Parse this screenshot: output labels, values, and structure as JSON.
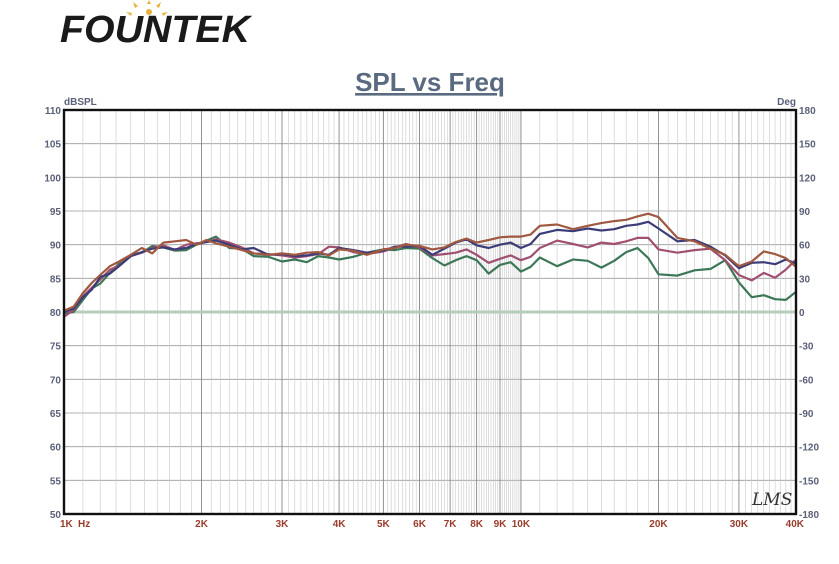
{
  "logo": {
    "text": "FOUNTEK"
  },
  "chart_data": {
    "type": "line",
    "title": "SPL vs Freq",
    "xlabel": "Hz",
    "ylabel": "dBSPL",
    "y2label": "Deg",
    "xscale": "log",
    "xlim": [
      1000,
      40000
    ],
    "ylim": [
      50,
      110
    ],
    "y2lim": [
      -180,
      180
    ],
    "grid": true,
    "x_ticks": [
      {
        "value": 1000,
        "label": "1K"
      },
      {
        "value": 2000,
        "label": "2K"
      },
      {
        "value": 3000,
        "label": "3K"
      },
      {
        "value": 4000,
        "label": "4K"
      },
      {
        "value": 5000,
        "label": "5K"
      },
      {
        "value": 6000,
        "label": "6K"
      },
      {
        "value": 7000,
        "label": "7K"
      },
      {
        "value": 8000,
        "label": "8K"
      },
      {
        "value": 9000,
        "label": "9K"
      },
      {
        "value": 10000,
        "label": "10K"
      },
      {
        "value": 20000,
        "label": "20K"
      },
      {
        "value": 30000,
        "label": "30K"
      },
      {
        "value": 40000,
        "label": "40K"
      }
    ],
    "y_ticks": [
      110,
      105,
      100,
      95,
      90,
      85,
      80,
      75,
      70,
      65,
      60,
      55,
      50
    ],
    "y2_ticks": [
      180,
      150,
      120,
      90,
      60,
      30,
      0,
      -30,
      -60,
      -90,
      -120,
      -150,
      -180
    ],
    "colors": {
      "brown": "#a05840",
      "navy": "#3c3c78",
      "mauve": "#a05070",
      "green": "#3c7858",
      "phase": "#b8ccbc",
      "axis_tick": "#9a3c2c",
      "axis_left": "#5a6078",
      "title": "#5a6a80"
    },
    "series": [
      {
        "color": "brown",
        "x": [
          1000,
          1050,
          1100,
          1150,
          1200,
          1260,
          1320,
          1400,
          1480,
          1560,
          1650,
          1750,
          1850,
          1950,
          2050,
          2150,
          2300,
          2450,
          2600,
          2800,
          3000,
          3200,
          3400,
          3600,
          3800,
          4000,
          4300,
          4600,
          5000,
          5300,
          5600,
          6000,
          6400,
          6800,
          7200,
          7600,
          8000,
          8500,
          9000,
          9500,
          10000,
          10500,
          11000,
          12000,
          13000,
          14000,
          15000,
          16000,
          17000,
          18000,
          19000,
          20000,
          22000,
          24000,
          26000,
          28000,
          30000,
          32000,
          34000,
          36000,
          38000,
          40000
        ],
        "y": [
          80.2,
          80.8,
          82.8,
          84.3,
          85.5,
          86.8,
          87.5,
          88.5,
          89.5,
          88.7,
          90.3,
          90.5,
          90.7,
          90,
          90.7,
          90.2,
          89.7,
          89.2,
          88.7,
          88.5,
          88.7,
          88.5,
          88.8,
          88.9,
          88.4,
          89.3,
          89.1,
          88.5,
          89.3,
          89.5,
          90,
          89.8,
          89.3,
          89.6,
          90.4,
          90.9,
          90.3,
          90.7,
          91.1,
          91.2,
          91.2,
          91.5,
          92.8,
          93,
          92.3,
          92.8,
          93.2,
          93.5,
          93.7,
          94.2,
          94.6,
          94.1,
          91,
          90.5,
          89.4,
          88.5,
          86.8,
          87.5,
          89,
          88.6,
          88,
          86.7
        ]
      },
      {
        "color": "navy",
        "x": [
          1000,
          1050,
          1100,
          1150,
          1200,
          1260,
          1320,
          1400,
          1480,
          1560,
          1650,
          1750,
          1850,
          1950,
          2050,
          2150,
          2300,
          2450,
          2600,
          2800,
          3000,
          3200,
          3400,
          3600,
          3800,
          4000,
          4300,
          4600,
          5000,
          5300,
          5600,
          6000,
          6400,
          6800,
          7200,
          7600,
          8000,
          8500,
          9000,
          9500,
          10000,
          10500,
          11000,
          12000,
          13000,
          14000,
          15000,
          16000,
          17000,
          18000,
          19000,
          20000,
          22000,
          24000,
          26000,
          28000,
          30000,
          32000,
          34000,
          36000,
          38000,
          40000
        ],
        "y": [
          80,
          80.5,
          82.2,
          83.3,
          85.2,
          85.7,
          86.8,
          88.3,
          88.9,
          89.4,
          89.6,
          89.3,
          89.5,
          90.1,
          90.4,
          90.6,
          90,
          89.3,
          89.5,
          88.5,
          88.6,
          88.3,
          88.4,
          88.7,
          88.5,
          89.5,
          89.2,
          88.8,
          89.1,
          89.7,
          89.7,
          89.8,
          88.5,
          89.4,
          90.3,
          90.8,
          89.9,
          89.5,
          90,
          90.3,
          89.5,
          90.1,
          91.6,
          92.2,
          92,
          92.4,
          92.1,
          92.3,
          92.8,
          93,
          93.4,
          92.4,
          90.5,
          90.7,
          89.7,
          88.4,
          86.5,
          87.3,
          87.4,
          87.1,
          87.8,
          87.2
        ]
      },
      {
        "color": "mauve",
        "x": [
          1000,
          1050,
          1100,
          1150,
          1200,
          1260,
          1320,
          1400,
          1480,
          1560,
          1650,
          1750,
          1850,
          1950,
          2050,
          2150,
          2300,
          2450,
          2600,
          2800,
          3000,
          3200,
          3400,
          3600,
          3800,
          4000,
          4300,
          4600,
          5000,
          5300,
          5600,
          6000,
          6400,
          6800,
          7200,
          7600,
          8000,
          8500,
          9000,
          9500,
          10000,
          10500,
          11000,
          12000,
          13000,
          14000,
          15000,
          16000,
          17000,
          18000,
          19000,
          20000,
          22000,
          24000,
          26000,
          28000,
          30000,
          32000,
          34000,
          36000,
          38000,
          40000
        ],
        "y": [
          79.3,
          80.3,
          82.3,
          83.6,
          84.8,
          86.3,
          86.9,
          88.3,
          88.8,
          89.5,
          89.9,
          89.2,
          90,
          90.2,
          90.4,
          90.8,
          90.3,
          89.6,
          88.7,
          88.6,
          88.4,
          88.1,
          88.3,
          88.6,
          89.7,
          89.6,
          88.9,
          88.6,
          89,
          89.6,
          90.1,
          89.6,
          88.4,
          88.6,
          88.8,
          89.3,
          88.5,
          87.3,
          87.9,
          88.4,
          87.7,
          88.2,
          89.5,
          90.6,
          90.1,
          89.6,
          90.3,
          90.1,
          90.5,
          91,
          91,
          89.3,
          88.8,
          89.2,
          89.4,
          87.7,
          85.5,
          84.7,
          85.8,
          85.1,
          86.3,
          87.8
        ]
      },
      {
        "color": "green",
        "x": [
          1000,
          1050,
          1100,
          1150,
          1200,
          1260,
          1320,
          1400,
          1480,
          1560,
          1650,
          1750,
          1850,
          1950,
          2050,
          2150,
          2300,
          2450,
          2600,
          2800,
          3000,
          3200,
          3400,
          3600,
          3800,
          4000,
          4300,
          4600,
          5000,
          5300,
          5600,
          6000,
          6400,
          6800,
          7200,
          7600,
          8000,
          8500,
          9000,
          9500,
          10000,
          10500,
          11000,
          12000,
          13000,
          14000,
          15000,
          16000,
          17000,
          18000,
          19000,
          20000,
          22000,
          24000,
          26000,
          28000,
          30000,
          32000,
          34000,
          36000,
          38000,
          40000
        ],
        "y": [
          79.8,
          80,
          81.8,
          83.5,
          84.2,
          85.8,
          87.2,
          88.5,
          88.8,
          89.8,
          89.6,
          89.1,
          89.2,
          90,
          90.6,
          91.2,
          89.5,
          89.4,
          88.3,
          88.2,
          87.5,
          87.8,
          87.4,
          88.3,
          88.1,
          87.8,
          88.2,
          88.8,
          89.3,
          89.2,
          89.5,
          89.4,
          88,
          86.9,
          87.7,
          88.3,
          87.7,
          85.7,
          87,
          87.4,
          86,
          86.7,
          88.1,
          86.8,
          87.8,
          87.6,
          86.6,
          87.6,
          88.9,
          89.5,
          88,
          85.6,
          85.4,
          86.2,
          86.4,
          87.7,
          84.4,
          82.2,
          82.5,
          81.9,
          81.8,
          83
        ]
      },
      {
        "color": "phase",
        "x": [
          1000,
          40000
        ],
        "y": [
          80,
          80
        ]
      }
    ]
  },
  "watermark": "LMS"
}
